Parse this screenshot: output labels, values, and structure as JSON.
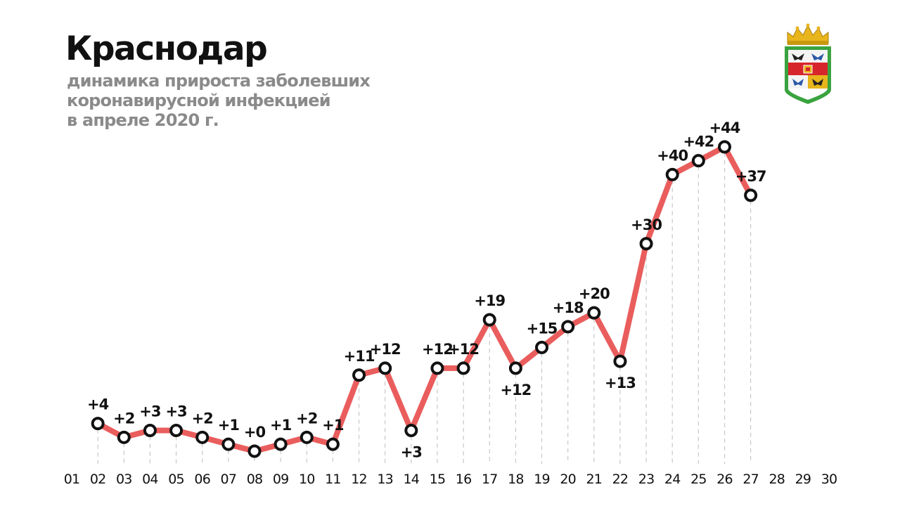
{
  "header": {
    "title": "Краснодар",
    "subtitle_lines": [
      "динамика прироста заболевших",
      "коронавирусной инфекцией",
      "в апреле 2020 г."
    ]
  },
  "crest": {
    "icon": "krasnodar-coat-of-arms-icon",
    "colors": {
      "gold": "#e8b51c",
      "green": "#3aa33f",
      "red": "#d7262b",
      "blue": "#2a59a8"
    }
  },
  "chart_data": {
    "type": "line",
    "title": "Краснодар",
    "subtitle": "динамика прироста заболевших коронавирусной инфекцией в апреле 2020 г.",
    "xlabel": "",
    "ylabel": "",
    "x_ticks": [
      "01",
      "02",
      "03",
      "04",
      "05",
      "06",
      "07",
      "08",
      "09",
      "10",
      "11",
      "12",
      "13",
      "14",
      "15",
      "16",
      "17",
      "18",
      "19",
      "20",
      "21",
      "22",
      "23",
      "24",
      "25",
      "26",
      "27",
      "28",
      "29",
      "30"
    ],
    "x": [
      "02",
      "03",
      "04",
      "05",
      "06",
      "07",
      "08",
      "09",
      "10",
      "11",
      "12",
      "13",
      "14",
      "15",
      "16",
      "17",
      "18",
      "19",
      "20",
      "21",
      "22",
      "23",
      "24",
      "25",
      "26",
      "27"
    ],
    "values": [
      4,
      2,
      3,
      3,
      2,
      1,
      0,
      1,
      2,
      1,
      11,
      12,
      3,
      12,
      12,
      19,
      12,
      15,
      18,
      20,
      13,
      30,
      40,
      42,
      44,
      37
    ],
    "labels": [
      "+4",
      "+2",
      "+3",
      "+3",
      "+2",
      "+1",
      "+0",
      "+1",
      "+2",
      "+1",
      "+11",
      "+12",
      "+3",
      "+12",
      "+12",
      "+19",
      "+12",
      "+15",
      "+18",
      "+20",
      "+13",
      "+30",
      "+40",
      "+42",
      "+44",
      "+37"
    ],
    "label_below": [
      "14",
      "18",
      "22"
    ],
    "ylim": [
      0,
      44
    ],
    "grid": false,
    "drop_lines": true,
    "legend": "none",
    "colors": {
      "line": "#ea5d5d",
      "marker_fill": "#ffffff",
      "marker_stroke": "#111111",
      "drop_line": "#c8c8c8",
      "text": "#111111"
    }
  }
}
